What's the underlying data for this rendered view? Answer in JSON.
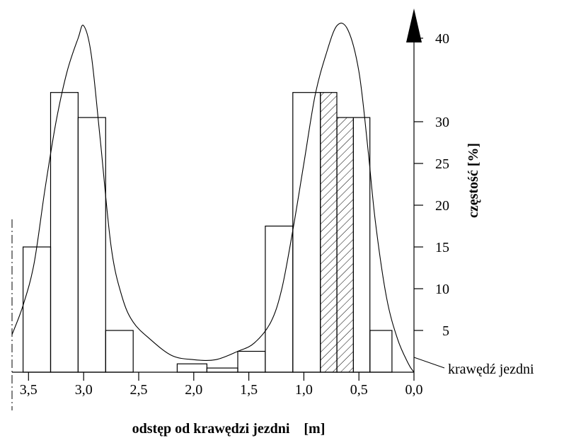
{
  "chart_data": {
    "type": "bar",
    "xlabel": "odstęp od krawędzi jezdni    [m]",
    "ylabel": "częstość   [%]",
    "annotation": "krawędź jezdni",
    "x_range": [
      3.65,
      0.0
    ],
    "x_reversed": true,
    "ylim": [
      0,
      45
    ],
    "x_ticks": [
      {
        "value": 3.5,
        "label": "3,5"
      },
      {
        "value": 3.0,
        "label": "3,0"
      },
      {
        "value": 2.5,
        "label": "2,5"
      },
      {
        "value": 2.0,
        "label": "2,0"
      },
      {
        "value": 1.5,
        "label": "1,5"
      },
      {
        "value": 1.0,
        "label": "1,0"
      },
      {
        "value": 0.5,
        "label": "0,5"
      },
      {
        "value": 0.0,
        "label": "0,0"
      }
    ],
    "y_ticks": [
      {
        "value": 5,
        "label": "5"
      },
      {
        "value": 10,
        "label": "10"
      },
      {
        "value": 15,
        "label": "15"
      },
      {
        "value": 20,
        "label": "20"
      },
      {
        "value": 25,
        "label": "25"
      },
      {
        "value": 30,
        "label": "30"
      },
      {
        "value": 40,
        "label": "40"
      }
    ],
    "bars": [
      {
        "x_from": 3.55,
        "x_to": 3.3,
        "value": 15,
        "hatched": false
      },
      {
        "x_from": 3.3,
        "x_to": 3.05,
        "value": 33.5,
        "hatched": false
      },
      {
        "x_from": 3.05,
        "x_to": 2.8,
        "value": 30.5,
        "hatched": false
      },
      {
        "x_from": 2.8,
        "x_to": 2.55,
        "value": 5,
        "hatched": false
      },
      {
        "x_from": 2.15,
        "x_to": 1.88,
        "value": 1,
        "hatched": false
      },
      {
        "x_from": 1.88,
        "x_to": 1.6,
        "value": 0.5,
        "hatched": false
      },
      {
        "x_from": 1.6,
        "x_to": 1.35,
        "value": 2.5,
        "hatched": false
      },
      {
        "x_from": 1.35,
        "x_to": 1.1,
        "value": 17.5,
        "hatched": false
      },
      {
        "x_from": 1.1,
        "x_to": 0.85,
        "value": 33.5,
        "hatched": false
      },
      {
        "x_from": 0.85,
        "x_to": 0.7,
        "value": 33.5,
        "hatched": true
      },
      {
        "x_from": 0.7,
        "x_to": 0.55,
        "value": 30.5,
        "hatched": true
      },
      {
        "x_from": 0.55,
        "x_to": 0.4,
        "value": 30.5,
        "hatched": false
      },
      {
        "x_from": 0.4,
        "x_to": 0.2,
        "value": 5,
        "hatched": false
      }
    ],
    "curve": [
      [
        3.65,
        4.5
      ],
      [
        3.55,
        8
      ],
      [
        3.45,
        13
      ],
      [
        3.35,
        22
      ],
      [
        3.25,
        30
      ],
      [
        3.15,
        36
      ],
      [
        3.05,
        40
      ],
      [
        3.0,
        41.5
      ],
      [
        2.93,
        38
      ],
      [
        2.85,
        28
      ],
      [
        2.75,
        15
      ],
      [
        2.65,
        9
      ],
      [
        2.55,
        6
      ],
      [
        2.4,
        4
      ],
      [
        2.2,
        2
      ],
      [
        2.0,
        1.5
      ],
      [
        1.8,
        1.5
      ],
      [
        1.6,
        2.5
      ],
      [
        1.45,
        3.5
      ],
      [
        1.3,
        6
      ],
      [
        1.2,
        10
      ],
      [
        1.1,
        17
      ],
      [
        1.0,
        25
      ],
      [
        0.9,
        33
      ],
      [
        0.8,
        38
      ],
      [
        0.7,
        41.5
      ],
      [
        0.6,
        41
      ],
      [
        0.5,
        36
      ],
      [
        0.42,
        27
      ],
      [
        0.35,
        18
      ],
      [
        0.25,
        9
      ],
      [
        0.15,
        4
      ],
      [
        0.05,
        1
      ],
      [
        0.0,
        0
      ]
    ]
  }
}
